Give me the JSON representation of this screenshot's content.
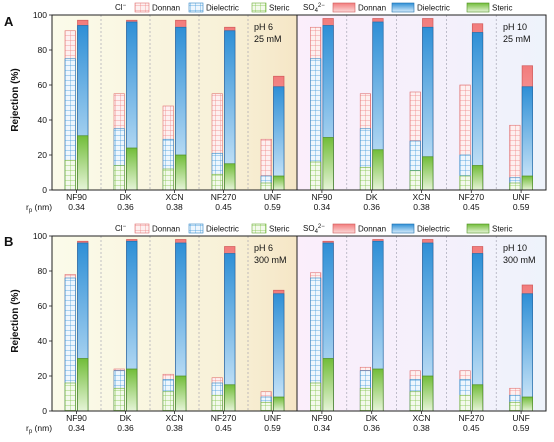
{
  "figure": {
    "ylabel": "Rejection (%)",
    "rp_label": "r",
    "rp_sub": "p",
    "rp_unit": " (nm)"
  },
  "legend": {
    "cl_label": "Cl",
    "cl_sup": "−",
    "so4_label": "SO",
    "so4_sub": "4",
    "so4_sup": "2−",
    "donnan": "Donnan",
    "dielectric": "Dielectric",
    "steric": "Steric"
  },
  "colors": {
    "donnan": "#f08080",
    "donnan_light": "#fbe3e3",
    "dielectric": "#3a97d9",
    "dielectric_light": "#cfe7f8",
    "steric": "#7cc242",
    "steric_light": "#e3f2d3",
    "bg_yellow_start": "#fbfbe8",
    "bg_yellow_end": "#f6e9cc",
    "bg_pink": "#fbeefb",
    "bg_blue": "#eef3fb"
  },
  "chart_data": [
    {
      "type": "bar",
      "panel": "A",
      "condition_left": {
        "ph": "pH 6",
        "conc": "25 mM"
      },
      "condition_right": {
        "ph": "pH 10",
        "conc": "25 mM"
      },
      "categories": [
        "NF90",
        "DK",
        "XCN",
        "NF270",
        "UNF"
      ],
      "rp_values": [
        "0.34",
        "0.36",
        "0.38",
        "0.45",
        "0.59"
      ],
      "ylim": [
        0,
        100
      ],
      "yticks": [
        "0",
        "20",
        "40",
        "60",
        "80",
        "100"
      ],
      "left": {
        "cl": {
          "steric": [
            17,
            14,
            12,
            9,
            4
          ],
          "dielectric": [
            75,
            35,
            29,
            21,
            8
          ],
          "donnan": [
            91,
            55,
            48,
            55,
            29
          ]
        },
        "so4": {
          "steric": [
            31,
            24,
            20,
            15,
            8
          ],
          "dielectric": [
            94,
            96,
            93,
            91,
            59
          ],
          "donnan": [
            97,
            97,
            97,
            93,
            65
          ]
        }
      },
      "right": {
        "cl": {
          "steric": [
            16,
            13,
            11,
            8,
            4
          ],
          "dielectric": [
            75,
            35,
            28,
            20,
            7
          ],
          "donnan": [
            93,
            55,
            56,
            60,
            37
          ]
        },
        "so4": {
          "steric": [
            30,
            23,
            19,
            14,
            8
          ],
          "dielectric": [
            94,
            96,
            93,
            90,
            59
          ],
          "donnan": [
            98,
            98,
            98,
            95,
            71
          ]
        }
      }
    },
    {
      "type": "bar",
      "panel": "B",
      "condition_left": {
        "ph": "pH 6",
        "conc": "300 mM"
      },
      "condition_right": {
        "ph": "pH 10",
        "conc": "300 mM"
      },
      "categories": [
        "NF90",
        "DK",
        "XCN",
        "NF270",
        "UNF"
      ],
      "rp_values": [
        "0.34",
        "0.36",
        "0.38",
        "0.45",
        "0.59"
      ],
      "ylim": [
        0,
        100
      ],
      "yticks": [
        "0",
        "20",
        "40",
        "60",
        "80",
        "100"
      ],
      "left": {
        "cl": {
          "steric": [
            16,
            13,
            11,
            9,
            5
          ],
          "dielectric": [
            76,
            23,
            18,
            16,
            8
          ],
          "donnan": [
            78,
            24,
            21,
            19,
            11
          ]
        },
        "so4": {
          "steric": [
            30,
            24,
            20,
            15,
            8
          ],
          "dielectric": [
            96,
            97,
            96,
            90,
            67
          ],
          "donnan": [
            97,
            98,
            98,
            94,
            69
          ]
        }
      },
      "right": {
        "cl": {
          "steric": [
            16,
            13,
            11,
            9,
            5
          ],
          "dielectric": [
            76,
            23,
            18,
            18,
            9
          ],
          "donnan": [
            79,
            25,
            23,
            23,
            13
          ]
        },
        "so4": {
          "steric": [
            30,
            24,
            20,
            15,
            8
          ],
          "dielectric": [
            96,
            97,
            96,
            90,
            67
          ],
          "donnan": [
            97,
            98,
            98,
            94,
            72
          ]
        }
      }
    }
  ]
}
